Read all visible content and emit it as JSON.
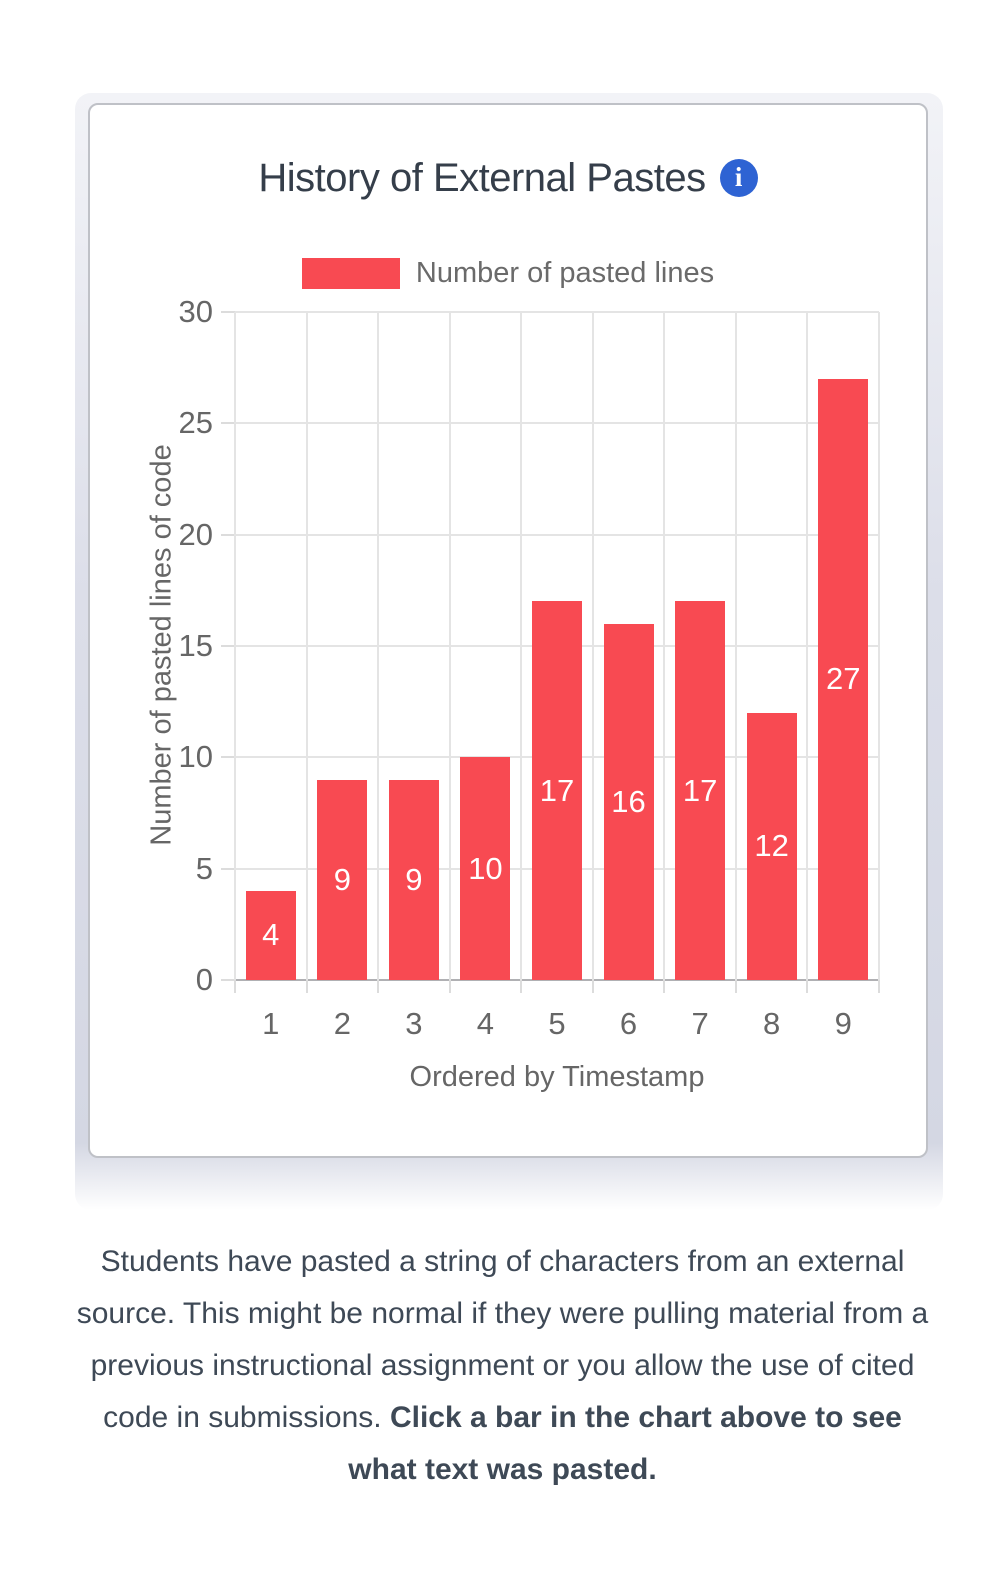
{
  "header": {
    "title": "History of External Pastes",
    "info_icon_glyph": "i"
  },
  "chart_data": {
    "type": "bar",
    "title": "History of External Pastes",
    "categories": [
      "1",
      "2",
      "3",
      "4",
      "5",
      "6",
      "7",
      "8",
      "9"
    ],
    "series": [
      {
        "name": "Number of pasted lines",
        "color": "#f84a52",
        "values": [
          4,
          9,
          9,
          10,
          17,
          16,
          17,
          12,
          27
        ]
      }
    ],
    "xlabel": "Ordered by Timestamp",
    "ylabel": "Number of pasted lines of code",
    "ylim": [
      0,
      30
    ],
    "yticks": [
      0,
      5,
      10,
      15,
      20,
      25,
      30
    ],
    "grid": true,
    "legend_position": "top-center",
    "value_labels": "inside-center-white"
  },
  "description": {
    "normal_text": "Students have pasted a string of characters from an external source. This might be normal if they were pulling material from a previous instructional assignment or you allow the use of cited code in submissions. ",
    "bold_text": "Click a bar in the chart above to see what text was pasted."
  },
  "colors": {
    "bar": "#f84a52",
    "info_icon_bg": "#2e63d3",
    "grid": "#e4e4e4",
    "axis_baseline": "#b0b0b3",
    "tick_text": "#666666",
    "title_text": "#353e4a",
    "body_text": "#3e4956",
    "card_border": "#bfc1c7"
  }
}
